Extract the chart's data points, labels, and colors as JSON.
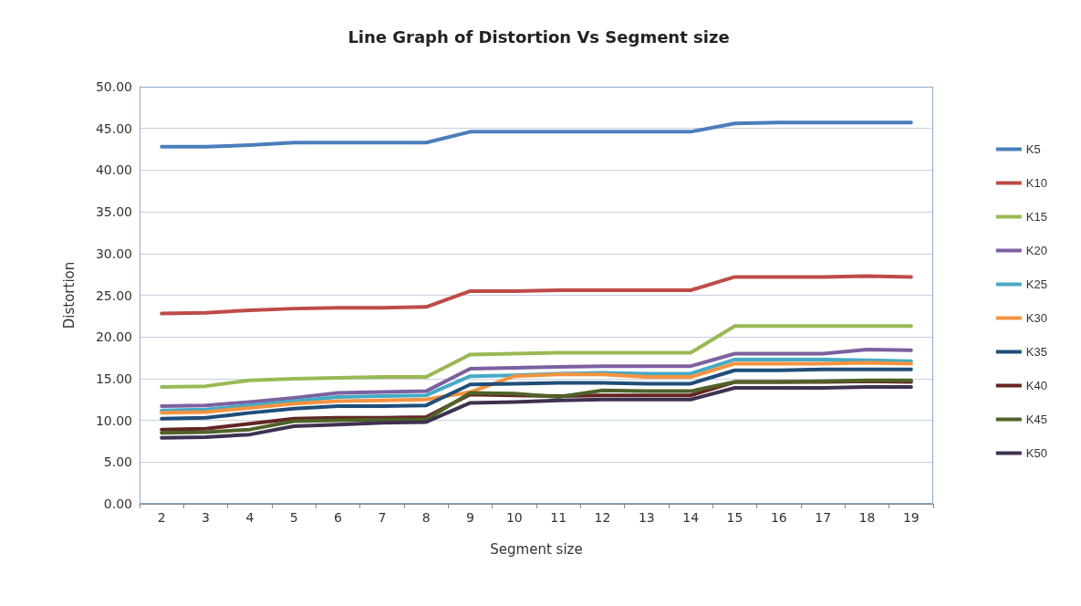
{
  "chart_data": {
    "type": "line",
    "title": "Line Graph of Distortion Vs Segment size",
    "xlabel": "Segment size",
    "ylabel": "Distortion",
    "categories": [
      "2",
      "3",
      "4",
      "5",
      "6",
      "7",
      "8",
      "9",
      "10",
      "11",
      "12",
      "13",
      "14",
      "15",
      "16",
      "17",
      "18",
      "19"
    ],
    "ylim": [
      0,
      50
    ],
    "yticks": [
      {
        "value": 0,
        "label": "0.00"
      },
      {
        "value": 5,
        "label": "5.00"
      },
      {
        "value": 10,
        "label": "10.00"
      },
      {
        "value": 15,
        "label": "15.00"
      },
      {
        "value": 20,
        "label": "20.00"
      },
      {
        "value": 25,
        "label": "25.00"
      },
      {
        "value": 30,
        "label": "30.00"
      },
      {
        "value": 35,
        "label": "35.00"
      },
      {
        "value": 40,
        "label": "40.00"
      },
      {
        "value": 45,
        "label": "45.00"
      },
      {
        "value": 50,
        "label": "50.00"
      }
    ],
    "grid": "y",
    "legend": "right",
    "marker": "none",
    "line_style": "solid",
    "series": [
      {
        "name": "K5",
        "color": "#4a7ebb",
        "values": [
          42.8,
          42.8,
          43.0,
          43.3,
          43.3,
          43.3,
          43.3,
          44.6,
          44.6,
          44.6,
          44.6,
          44.6,
          44.6,
          45.6,
          45.7,
          45.7,
          45.7,
          45.7
        ]
      },
      {
        "name": "K10",
        "color": "#be4b48",
        "values": [
          22.8,
          22.9,
          23.2,
          23.4,
          23.5,
          23.5,
          23.6,
          25.5,
          25.5,
          25.6,
          25.6,
          25.6,
          25.6,
          27.2,
          27.2,
          27.2,
          27.3,
          27.2
        ]
      },
      {
        "name": "K15",
        "color": "#98b954",
        "values": [
          14.0,
          14.1,
          14.8,
          15.0,
          15.1,
          15.2,
          15.2,
          17.9,
          18.0,
          18.1,
          18.1,
          18.1,
          18.1,
          21.3,
          21.3,
          21.3,
          21.3,
          21.3
        ]
      },
      {
        "name": "K20",
        "color": "#7d60a0",
        "values": [
          11.7,
          11.8,
          12.2,
          12.7,
          13.3,
          13.4,
          13.5,
          16.2,
          16.3,
          16.4,
          16.5,
          16.5,
          16.5,
          18.0,
          18.0,
          18.0,
          18.5,
          18.4
        ]
      },
      {
        "name": "K25",
        "color": "#46aac5",
        "values": [
          11.2,
          11.3,
          11.8,
          12.3,
          12.8,
          12.9,
          13.0,
          15.3,
          15.4,
          15.6,
          15.7,
          15.6,
          15.6,
          17.3,
          17.3,
          17.3,
          17.2,
          17.1
        ]
      },
      {
        "name": "K30",
        "color": "#f69240",
        "values": [
          10.9,
          11.0,
          11.5,
          12.0,
          12.3,
          12.4,
          12.5,
          13.4,
          15.3,
          15.5,
          15.5,
          15.2,
          15.2,
          16.8,
          16.8,
          16.8,
          16.9,
          16.8
        ]
      },
      {
        "name": "K35",
        "color": "#1f4e79",
        "values": [
          10.2,
          10.3,
          10.9,
          11.4,
          11.7,
          11.7,
          11.8,
          14.3,
          14.4,
          14.5,
          14.5,
          14.4,
          14.4,
          16.0,
          16.0,
          16.1,
          16.1,
          16.1
        ]
      },
      {
        "name": "K40",
        "color": "#632523",
        "values": [
          8.9,
          9.0,
          9.6,
          10.2,
          10.3,
          10.3,
          10.4,
          13.1,
          13.0,
          12.9,
          13.0,
          13.0,
          13.0,
          14.6,
          14.6,
          14.6,
          14.7,
          14.6
        ]
      },
      {
        "name": "K45",
        "color": "#4f6228",
        "values": [
          8.5,
          8.6,
          8.9,
          9.9,
          10.0,
          10.1,
          10.1,
          13.3,
          13.2,
          12.8,
          13.6,
          13.5,
          13.5,
          14.6,
          14.6,
          14.7,
          14.8,
          14.8
        ]
      },
      {
        "name": "K50",
        "color": "#3f3151",
        "values": [
          7.9,
          8.0,
          8.3,
          9.3,
          9.5,
          9.7,
          9.8,
          12.1,
          12.2,
          12.4,
          12.5,
          12.5,
          12.5,
          13.9,
          13.9,
          13.9,
          14.0,
          14.0
        ]
      }
    ]
  }
}
